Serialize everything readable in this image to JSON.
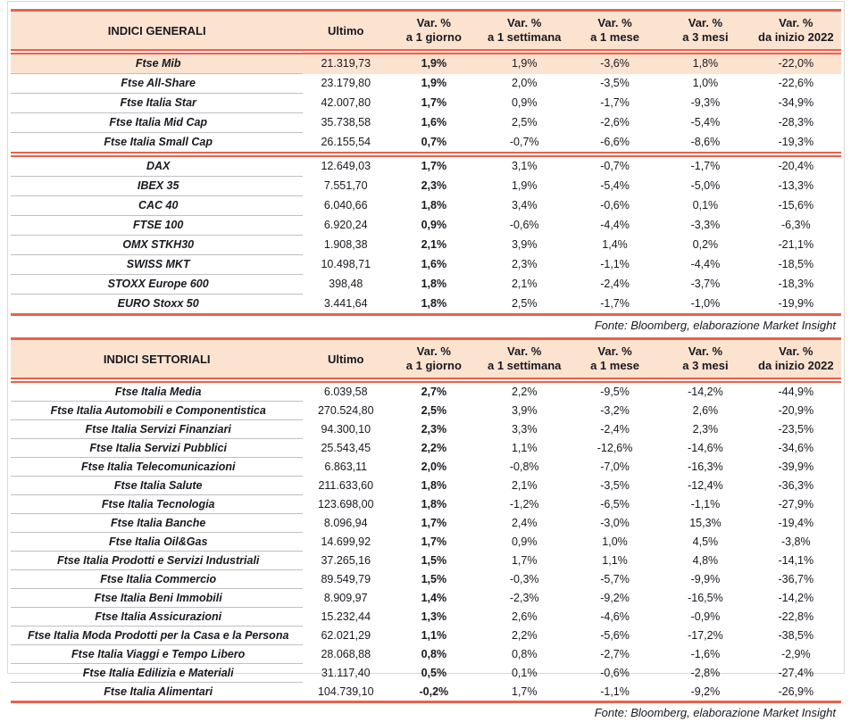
{
  "columns": {
    "ultimo": "Ultimo",
    "var_headers": [
      {
        "l1": "Var. %",
        "l2": "a 1 giorno"
      },
      {
        "l1": "Var. %",
        "l2": "a 1 settimana"
      },
      {
        "l1": "Var. %",
        "l2": "a 1 mese"
      },
      {
        "l1": "Var. %",
        "l2": "a 3 mesi"
      },
      {
        "l1": "Var. %",
        "l2": "da inizio 2022"
      }
    ]
  },
  "source_note": "Fonte: Bloomberg, elaborazione Market Insight",
  "colors": {
    "accent_red": "#ED604B",
    "header_bg": "#FBE3D0",
    "highlight_row_bg": "#FBE3D0",
    "row_separator": "#BFBFBF",
    "frame_border": "#D9D9D9",
    "text": "#1A181F"
  },
  "tables": [
    {
      "title": "INDICI GENERALI",
      "separator_after": 4,
      "rows": [
        {
          "name": "Ftse Mib",
          "highlight": true,
          "values": [
            "21.319,73",
            "1,9%",
            "1,9%",
            "-3,6%",
            "1,8%",
            "-22,0%"
          ]
        },
        {
          "name": "Ftse All-Share",
          "values": [
            "23.179,80",
            "1,9%",
            "2,0%",
            "-3,5%",
            "1,0%",
            "-22,6%"
          ]
        },
        {
          "name": "Ftse Italia Star",
          "values": [
            "42.007,80",
            "1,7%",
            "0,9%",
            "-1,7%",
            "-9,3%",
            "-34,9%"
          ]
        },
        {
          "name": "Ftse Italia Mid Cap",
          "values": [
            "35.738,58",
            "1,6%",
            "2,5%",
            "-2,6%",
            "-5,4%",
            "-28,3%"
          ]
        },
        {
          "name": "Ftse Italia Small Cap",
          "values": [
            "26.155,54",
            "0,7%",
            "-0,7%",
            "-6,6%",
            "-8,6%",
            "-19,3%"
          ]
        },
        {
          "name": "DAX",
          "values": [
            "12.649,03",
            "1,7%",
            "3,1%",
            "-0,7%",
            "-1,7%",
            "-20,4%"
          ]
        },
        {
          "name": "IBEX 35",
          "values": [
            "7.551,70",
            "2,3%",
            "1,9%",
            "-5,4%",
            "-5,0%",
            "-13,3%"
          ]
        },
        {
          "name": "CAC 40",
          "values": [
            "6.040,66",
            "1,8%",
            "3,4%",
            "-0,6%",
            "0,1%",
            "-15,6%"
          ]
        },
        {
          "name": "FTSE 100",
          "values": [
            "6.920,24",
            "0,9%",
            "-0,6%",
            "-4,4%",
            "-3,3%",
            "-6,3%"
          ]
        },
        {
          "name": "OMX STKH30",
          "values": [
            "1.908,38",
            "2,1%",
            "3,9%",
            "1,4%",
            "0,2%",
            "-21,1%"
          ]
        },
        {
          "name": "SWISS MKT",
          "values": [
            "10.498,71",
            "1,6%",
            "2,3%",
            "-1,1%",
            "-4,4%",
            "-18,5%"
          ]
        },
        {
          "name": "STOXX Europe 600",
          "values": [
            "398,48",
            "1,8%",
            "2,1%",
            "-2,4%",
            "-3,7%",
            "-18,3%"
          ]
        },
        {
          "name": "EURO Stoxx 50",
          "values": [
            "3.441,64",
            "1,8%",
            "2,5%",
            "-1,7%",
            "-1,0%",
            "-19,9%"
          ]
        }
      ]
    },
    {
      "title": "INDICI SETTORIALI",
      "rows": [
        {
          "name": "Ftse Italia Media",
          "values": [
            "6.039,58",
            "2,7%",
            "2,2%",
            "-9,5%",
            "-14,2%",
            "-44,9%"
          ]
        },
        {
          "name": "Ftse Italia Automobili e Componentistica",
          "values": [
            "270.524,80",
            "2,5%",
            "3,9%",
            "-3,2%",
            "2,6%",
            "-20,9%"
          ]
        },
        {
          "name": "Ftse Italia Servizi Finanziari",
          "values": [
            "94.300,10",
            "2,3%",
            "3,3%",
            "-2,4%",
            "2,3%",
            "-23,5%"
          ]
        },
        {
          "name": "Ftse Italia Servizi Pubblici",
          "values": [
            "25.543,45",
            "2,2%",
            "1,1%",
            "-12,6%",
            "-14,6%",
            "-34,6%"
          ]
        },
        {
          "name": "Ftse Italia Telecomunicazioni",
          "values": [
            "6.863,11",
            "2,0%",
            "-0,8%",
            "-7,0%",
            "-16,3%",
            "-39,9%"
          ]
        },
        {
          "name": "Ftse Italia Salute",
          "values": [
            "211.633,60",
            "1,8%",
            "2,1%",
            "-3,5%",
            "-12,4%",
            "-36,3%"
          ]
        },
        {
          "name": "Ftse Italia Tecnologia",
          "values": [
            "123.698,00",
            "1,8%",
            "-1,2%",
            "-6,5%",
            "-1,1%",
            "-27,9%"
          ]
        },
        {
          "name": "Ftse Italia Banche",
          "values": [
            "8.096,94",
            "1,7%",
            "2,4%",
            "-3,0%",
            "15,3%",
            "-19,4%"
          ]
        },
        {
          "name": "Ftse Italia Oil&Gas",
          "values": [
            "14.699,92",
            "1,7%",
            "0,9%",
            "1,0%",
            "4,5%",
            "-3,8%"
          ]
        },
        {
          "name": "Ftse Italia Prodotti e Servizi Industriali",
          "values": [
            "37.265,16",
            "1,5%",
            "1,7%",
            "1,1%",
            "4,8%",
            "-14,1%"
          ]
        },
        {
          "name": "Ftse Italia Commercio",
          "values": [
            "89.549,79",
            "1,5%",
            "-0,3%",
            "-5,7%",
            "-9,9%",
            "-36,7%"
          ]
        },
        {
          "name": "Ftse Italia Beni Immobili",
          "values": [
            "8.909,97",
            "1,4%",
            "-2,3%",
            "-9,2%",
            "-16,5%",
            "-14,2%"
          ]
        },
        {
          "name": "Ftse Italia Assicurazioni",
          "values": [
            "15.232,44",
            "1,3%",
            "2,6%",
            "-4,6%",
            "-0,9%",
            "-22,8%"
          ]
        },
        {
          "name": "Ftse Italia Moda Prodotti per la Casa e la Persona",
          "values": [
            "62.021,29",
            "1,1%",
            "2,2%",
            "-5,6%",
            "-17,2%",
            "-38,5%"
          ]
        },
        {
          "name": "Ftse Italia Viaggi e Tempo Libero",
          "values": [
            "28.068,88",
            "0,8%",
            "0,8%",
            "-2,7%",
            "-1,6%",
            "-2,9%"
          ]
        },
        {
          "name": "Ftse Italia Edilizia e Materiali",
          "values": [
            "31.117,40",
            "0,5%",
            "0,1%",
            "-0,6%",
            "-2,8%",
            "-27,4%"
          ]
        },
        {
          "name": "Ftse Italia Alimentari",
          "values": [
            "104.739,10",
            "-0,2%",
            "1,7%",
            "-1,1%",
            "-9,2%",
            "-26,9%"
          ]
        }
      ]
    }
  ]
}
